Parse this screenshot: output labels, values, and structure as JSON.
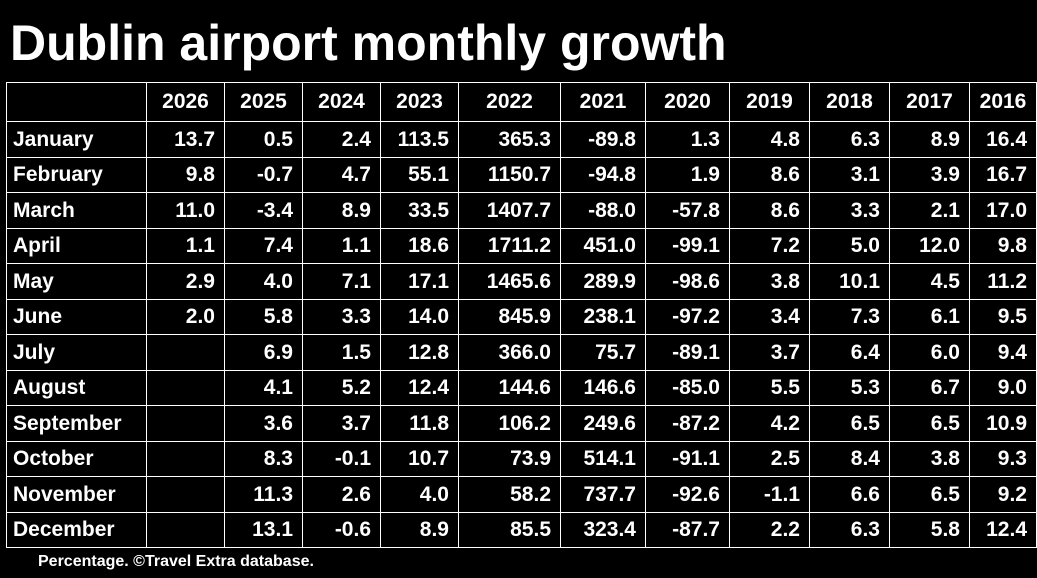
{
  "title": "Dublin airport monthly growth",
  "footer": "Percentage. ©Travel Extra database.",
  "chart_data": {
    "type": "table",
    "title": "Dublin airport monthly growth",
    "columns": [
      "2026",
      "2025",
      "2024",
      "2023",
      "2022",
      "2021",
      "2020",
      "2019",
      "2018",
      "2017",
      "2016"
    ],
    "rows": [
      {
        "month": "January",
        "values": [
          "13.7",
          "0.5",
          "2.4",
          "113.5",
          "365.3",
          "-89.8",
          "1.3",
          "4.8",
          "6.3",
          "8.9",
          "16.4"
        ]
      },
      {
        "month": "February",
        "values": [
          "9.8",
          "-0.7",
          "4.7",
          "55.1",
          "1150.7",
          "-94.8",
          "1.9",
          "8.6",
          "3.1",
          "3.9",
          "16.7"
        ]
      },
      {
        "month": "March",
        "values": [
          "11.0",
          "-3.4",
          "8.9",
          "33.5",
          "1407.7",
          "-88.0",
          "-57.8",
          "8.6",
          "3.3",
          "2.1",
          "17.0"
        ]
      },
      {
        "month": "April",
        "values": [
          "1.1",
          "7.4",
          "1.1",
          "18.6",
          "1711.2",
          "451.0",
          "-99.1",
          "7.2",
          "5.0",
          "12.0",
          "9.8"
        ]
      },
      {
        "month": "May",
        "values": [
          "2.9",
          "4.0",
          "7.1",
          "17.1",
          "1465.6",
          "289.9",
          "-98.6",
          "3.8",
          "10.1",
          "4.5",
          "11.2"
        ]
      },
      {
        "month": "June",
        "values": [
          "2.0",
          "5.8",
          "3.3",
          "14.0",
          "845.9",
          "238.1",
          "-97.2",
          "3.4",
          "7.3",
          "6.1",
          "9.5"
        ]
      },
      {
        "month": "July",
        "values": [
          "",
          "6.9",
          "1.5",
          "12.8",
          "366.0",
          "75.7",
          "-89.1",
          "3.7",
          "6.4",
          "6.0",
          "9.4"
        ]
      },
      {
        "month": "August",
        "values": [
          "",
          "4.1",
          "5.2",
          "12.4",
          "144.6",
          "146.6",
          "-85.0",
          "5.5",
          "5.3",
          "6.7",
          "9.0"
        ]
      },
      {
        "month": "September",
        "values": [
          "",
          "3.6",
          "3.7",
          "11.8",
          "106.2",
          "249.6",
          "-87.2",
          "4.2",
          "6.5",
          "6.5",
          "10.9"
        ]
      },
      {
        "month": "October",
        "values": [
          "",
          "8.3",
          "-0.1",
          "10.7",
          "73.9",
          "514.1",
          "-91.1",
          "2.5",
          "8.4",
          "3.8",
          "9.3"
        ]
      },
      {
        "month": "November",
        "values": [
          "",
          "11.3",
          "2.6",
          "4.0",
          "58.2",
          "737.7",
          "-92.6",
          "-1.1",
          "6.6",
          "6.5",
          "9.2"
        ]
      },
      {
        "month": "December",
        "values": [
          "",
          "13.1",
          "-0.6",
          "8.9",
          "85.5",
          "323.4",
          "-87.7",
          "2.2",
          "6.3",
          "5.8",
          "12.4"
        ]
      }
    ]
  }
}
